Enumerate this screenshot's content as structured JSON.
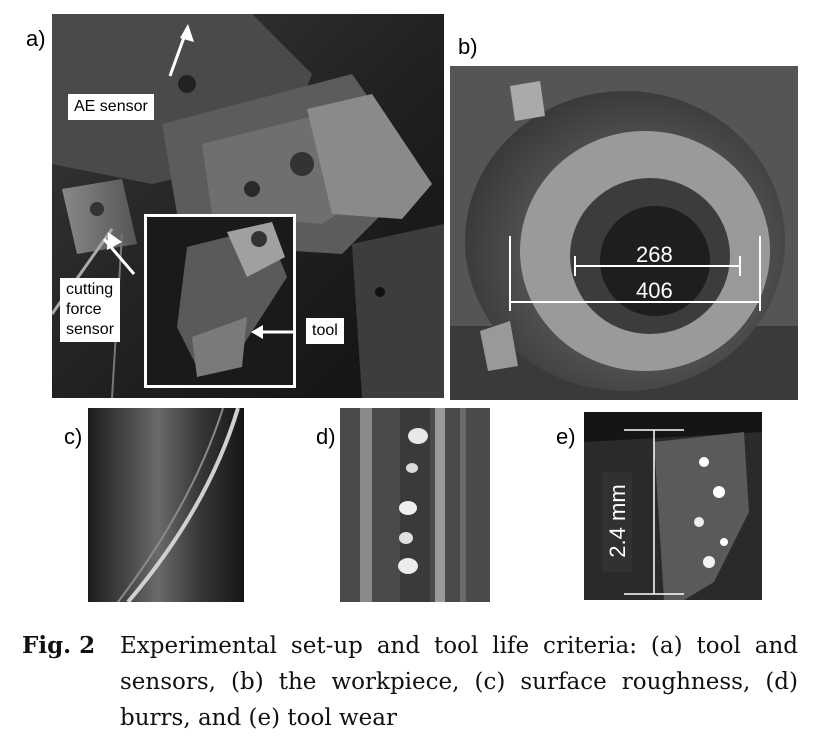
{
  "panels": {
    "a": {
      "letter": "a)",
      "labels": {
        "ae_sensor": "AE sensor",
        "cutting_force_sensor": "cutting\nforce\nsensor",
        "tool": "tool"
      }
    },
    "b": {
      "letter": "b)",
      "dimensions": {
        "inner": "268",
        "outer": "406"
      }
    },
    "c": {
      "letter": "c)"
    },
    "d": {
      "letter": "d)"
    },
    "e": {
      "letter": "e)",
      "measurement": "2.4 mm"
    }
  },
  "caption": {
    "label": "Fig. 2",
    "text": "Experimental set-up and tool life criteria: (a) tool and sensors, (b) the workpiece, (c) surface roughness, (d) burrs, and (e) tool wear"
  }
}
